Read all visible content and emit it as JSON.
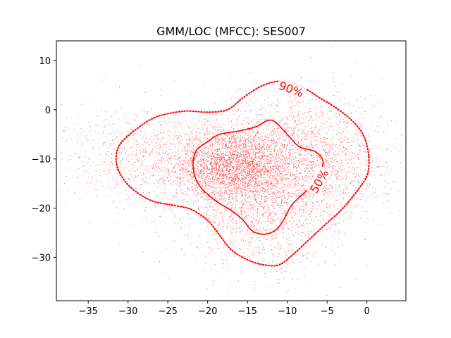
{
  "chart_data": {
    "type": "scatter",
    "title": "GMM/LOC (MFCC): SES007",
    "xlabel": "",
    "ylabel": "",
    "xlim": [
      -39,
      4.9
    ],
    "ylim": [
      -38.8,
      14
    ],
    "x_ticks": [
      -35,
      -30,
      -25,
      -20,
      -15,
      -10,
      -5,
      0
    ],
    "y_ticks": [
      10,
      0,
      -10,
      -20,
      -30
    ],
    "x_tick_labels": [
      "−35",
      "−30",
      "−25",
      "−20",
      "−15",
      "−10",
      "−5",
      "0"
    ],
    "y_tick_labels": [
      "10",
      "0",
      "−10",
      "−20",
      "−30"
    ],
    "point_color": "#ff0000",
    "point_count_approx": 7000,
    "clusters": [
      {
        "cx": -17,
        "cy": -11,
        "sx": 3.5,
        "sy": 3.5,
        "weight": 0.3
      },
      {
        "cx": -13,
        "cy": -17,
        "sx": 5,
        "sy": 7,
        "weight": 0.35
      },
      {
        "cx": -8,
        "cy": -7,
        "sx": 5,
        "sy": 6,
        "weight": 0.15
      },
      {
        "cx": -26,
        "cy": -10,
        "sx": 6,
        "sy": 5,
        "weight": 0.15
      },
      {
        "cx": -3,
        "cy": -12,
        "sx": 3,
        "sy": 5,
        "weight": 0.05
      }
    ],
    "contours": [
      {
        "label": "90%",
        "style": "dotted",
        "color": "#ff0000",
        "label_x": -9.5,
        "label_y": 4.2,
        "label_rotation": 20,
        "points": [
          [
            -10.5,
            5.8
          ],
          [
            -8,
            4.5
          ],
          [
            -6,
            2.5
          ],
          [
            -4,
            0.5
          ],
          [
            -2,
            -2
          ],
          [
            -0.5,
            -5
          ],
          [
            0.2,
            -9
          ],
          [
            0.1,
            -13
          ],
          [
            -1,
            -16
          ],
          [
            -3,
            -20
          ],
          [
            -5,
            -23
          ],
          [
            -7,
            -26
          ],
          [
            -9,
            -29
          ],
          [
            -11,
            -31.5
          ],
          [
            -13,
            -31.5
          ],
          [
            -15,
            -30.5
          ],
          [
            -17,
            -28.5
          ],
          [
            -18.5,
            -25.5
          ],
          [
            -20,
            -22.5
          ],
          [
            -22,
            -20.3
          ],
          [
            -24,
            -19.5
          ],
          [
            -27,
            -18.5
          ],
          [
            -29.5,
            -16
          ],
          [
            -31,
            -13
          ],
          [
            -31.5,
            -10
          ],
          [
            -31,
            -7
          ],
          [
            -29,
            -4
          ],
          [
            -26.5,
            -1.5
          ],
          [
            -23,
            -0.3
          ],
          [
            -20,
            -0.5
          ],
          [
            -17.5,
            0
          ],
          [
            -15.5,
            2.5
          ],
          [
            -13,
            5
          ],
          [
            -10.5,
            5.8
          ]
        ]
      },
      {
        "label": "50%",
        "style": "solid",
        "color": "#ff0000",
        "label_x": -6,
        "label_y": -14.5,
        "label_rotation": -60,
        "points": [
          [
            -14,
            -3.5
          ],
          [
            -12.5,
            -2.2
          ],
          [
            -11.5,
            -2.5
          ],
          [
            -10,
            -5
          ],
          [
            -8.5,
            -7.5
          ],
          [
            -6.5,
            -8.5
          ],
          [
            -5.5,
            -10.5
          ],
          [
            -6,
            -13
          ],
          [
            -7,
            -15.5
          ],
          [
            -8.5,
            -17.8
          ],
          [
            -9.5,
            -19.5
          ],
          [
            -10.5,
            -22.5
          ],
          [
            -11.5,
            -24.5
          ],
          [
            -13,
            -25.3
          ],
          [
            -14.5,
            -24.5
          ],
          [
            -15.5,
            -22.5
          ],
          [
            -17,
            -20.5
          ],
          [
            -19,
            -18.5
          ],
          [
            -21,
            -15.5
          ],
          [
            -21.8,
            -12
          ],
          [
            -21.5,
            -8.5
          ],
          [
            -20,
            -6.5
          ],
          [
            -18.5,
            -5
          ],
          [
            -16,
            -4.3
          ],
          [
            -14,
            -3.5
          ]
        ]
      }
    ]
  }
}
